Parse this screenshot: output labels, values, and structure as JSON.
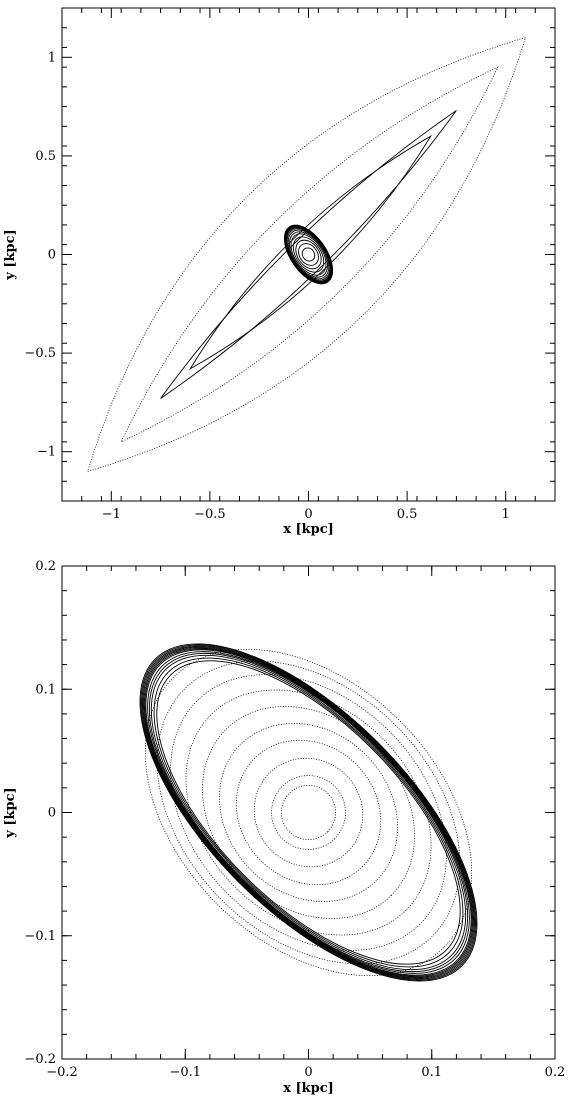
{
  "chart_data": [
    {
      "type": "line",
      "xlabel": "x [kpc]",
      "ylabel": "y [kpc]",
      "xlim": [
        -1.25,
        1.25
      ],
      "ylim": [
        -1.25,
        1.25
      ],
      "x_ticks": [
        -1,
        -0.5,
        0,
        0.5,
        1
      ],
      "x_tick_labels": [
        "−1",
        "−0.5",
        "0",
        "0.5",
        "1"
      ],
      "y_ticks": [
        -1,
        -0.5,
        0,
        0.5,
        1
      ],
      "y_tick_labels": [
        "−1",
        "−0.5",
        "0",
        "0.5",
        "1"
      ],
      "minor_step": 0.1,
      "grid": false,
      "series": [
        {
          "shape": "lens",
          "tip_a": [
            1.1,
            1.1
          ],
          "tip_b": [
            -1.12,
            -1.1
          ],
          "half_width": 0.42,
          "style": "dotted"
        },
        {
          "shape": "lens",
          "tip_a": [
            0.96,
            0.95
          ],
          "tip_b": [
            -0.95,
            -0.95
          ],
          "half_width": 0.24,
          "style": "dotted"
        },
        {
          "shape": "lens",
          "tip_a": [
            0.75,
            0.73
          ],
          "tip_b": [
            -0.75,
            -0.73
          ],
          "half_width": 0.09,
          "style": "solid"
        },
        {
          "shape": "lens",
          "tip_a": [
            0.62,
            0.6
          ],
          "tip_b": [
            -0.6,
            -0.58
          ],
          "half_width": 0.11,
          "style": "solid"
        },
        {
          "shape": "ellipse_family",
          "center": [
            0,
            0
          ],
          "angle_deg": -55,
          "a_values": [
            0.17,
            0.168,
            0.165,
            0.162,
            0.158,
            0.154,
            0.148,
            0.14,
            0.13,
            0.118,
            0.1,
            0.08,
            0.06,
            0.035
          ],
          "b_values": [
            0.09,
            0.089,
            0.088,
            0.087,
            0.086,
            0.084,
            0.082,
            0.079,
            0.075,
            0.07,
            0.063,
            0.055,
            0.045,
            0.03
          ],
          "style": "solid"
        }
      ]
    },
    {
      "type": "line",
      "xlabel": "x [kpc]",
      "ylabel": "y [kpc]",
      "xlim": [
        -0.2,
        0.2
      ],
      "ylim": [
        -0.2,
        0.2
      ],
      "x_ticks": [
        -0.2,
        -0.1,
        0,
        0.1,
        0.2
      ],
      "x_tick_labels": [
        "−0.2",
        "−0.1",
        "0",
        "0.1",
        "0.2"
      ],
      "y_ticks": [
        -0.2,
        -0.1,
        0,
        0.1,
        0.2
      ],
      "y_tick_labels": [
        "−0.2",
        "−0.1",
        "0",
        "0.1",
        "0.2"
      ],
      "minor_step": 0.02,
      "grid": false,
      "series": [
        {
          "shape": "ellipse_family",
          "center": [
            0,
            0
          ],
          "angle_deg": -45,
          "a_values": [
            0.176,
            0.175,
            0.174,
            0.173,
            0.172,
            0.171,
            0.17,
            0.168,
            0.166,
            0.164,
            0.161,
            0.158
          ],
          "b_values": [
            0.08,
            0.0795,
            0.079,
            0.0785,
            0.078,
            0.0775,
            0.077,
            0.0765,
            0.076,
            0.075,
            0.074,
            0.073
          ],
          "style": "solid"
        },
        {
          "shape": "ellipse_family",
          "center": [
            0,
            0
          ],
          "angle_deg": -45,
          "a_values": [
            0.155,
            0.142,
            0.128,
            0.112,
            0.095,
            0.078,
            0.062,
            0.045,
            0.03,
            0.022
          ],
          "b_values": [
            0.105,
            0.1,
            0.093,
            0.085,
            0.076,
            0.066,
            0.055,
            0.043,
            0.03,
            0.022
          ],
          "style": "dotted"
        }
      ]
    }
  ]
}
